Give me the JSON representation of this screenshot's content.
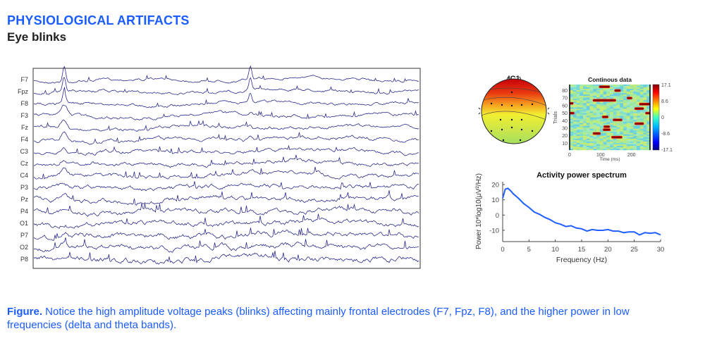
{
  "header": {
    "section_title": "PHYSIOLOGICAL ARTIFACTS",
    "subtitle": "Eye blinks"
  },
  "caption": {
    "label": "Figure.",
    "text": " Notice the high amplitude voltage peaks (blinks) affecting mainly frontal electrodes (F7, Fpz, F8), and the higher power in low frequencies (delta and theta bands)."
  },
  "colors": {
    "accent": "#1a5cff",
    "trace": "#2b2a8c",
    "spectrum": "#1f5fff"
  },
  "chart_data": [
    {
      "type": "line",
      "channels": [
        "F7",
        "Fpz",
        "F8",
        "F3",
        "Fz",
        "F4",
        "C3",
        "Cz",
        "C4",
        "P3",
        "Pz",
        "P4",
        "O1",
        "P7",
        "O2",
        "P8"
      ],
      "grid": false
    },
    {
      "type": "topoplot",
      "title": "IC1",
      "colormap": "jet"
    },
    {
      "type": "heatmap",
      "title": "Continous data",
      "xlabel": "Time (ms)",
      "ylabel": "Trials",
      "xticks": [
        0,
        100,
        200
      ],
      "yticks": [
        10,
        20,
        30,
        40,
        50,
        60,
        70,
        80
      ],
      "xlim": [
        0,
        260
      ],
      "ylim": [
        1,
        88
      ],
      "colorbar_ticks": [
        "17.1",
        "8.6",
        "0",
        "-8.6",
        "-17.1"
      ],
      "high_events": [
        {
          "trial": 85,
          "t": [
            95,
            130
          ]
        },
        {
          "trial": 80,
          "t": [
            145,
            165
          ]
        },
        {
          "trial": 70,
          "t": [
            185,
            202
          ]
        },
        {
          "trial": 67,
          "t": [
            75,
            150
          ]
        },
        {
          "trial": 63,
          "t": [
            0,
            12
          ]
        },
        {
          "trial": 62,
          "t": [
            225,
            260
          ]
        },
        {
          "trial": 56,
          "t": [
            210,
            240
          ]
        },
        {
          "trial": 50,
          "t": [
            0,
            15
          ]
        },
        {
          "trial": 50,
          "t": [
            245,
            260
          ]
        },
        {
          "trial": 45,
          "t": [
            105,
            125
          ]
        },
        {
          "trial": 41,
          "t": [
            140,
            170
          ]
        },
        {
          "trial": 36,
          "t": [
            210,
            240
          ]
        },
        {
          "trial": 32,
          "t": [
            110,
            130
          ]
        },
        {
          "trial": 28,
          "t": [
            108,
            132
          ]
        },
        {
          "trial": 23,
          "t": [
            75,
            100
          ]
        },
        {
          "trial": 18,
          "t": [
            135,
            170
          ]
        }
      ]
    },
    {
      "type": "line",
      "title": "Activity power spectrum",
      "xlabel": "Frequency (Hz)",
      "ylabel": "Power 10*log10(μV²/Hz)",
      "xticks": [
        0,
        5,
        10,
        15,
        20,
        25,
        30
      ],
      "yticks": [
        20,
        10,
        0,
        -10
      ],
      "xlim": [
        0,
        30
      ],
      "ylim": [
        -17,
        22
      ],
      "x": [
        0,
        0.5,
        1,
        1.5,
        2,
        3,
        4,
        5,
        6,
        7,
        8,
        9,
        10,
        11,
        12,
        13,
        14,
        15,
        16,
        17,
        18,
        19,
        20,
        21,
        22,
        23,
        24,
        25,
        26,
        27,
        28,
        29,
        30
      ],
      "y": [
        11,
        17,
        17.5,
        16,
        14,
        11,
        7.5,
        5,
        2,
        0.5,
        -1.5,
        -3,
        -5,
        -6,
        -7.5,
        -7,
        -8.5,
        -9,
        -10.5,
        -9.5,
        -10,
        -10,
        -9.5,
        -10.5,
        -10.5,
        -11.5,
        -11,
        -11,
        -13,
        -11.5,
        -12,
        -11.5,
        -13
      ]
    }
  ]
}
